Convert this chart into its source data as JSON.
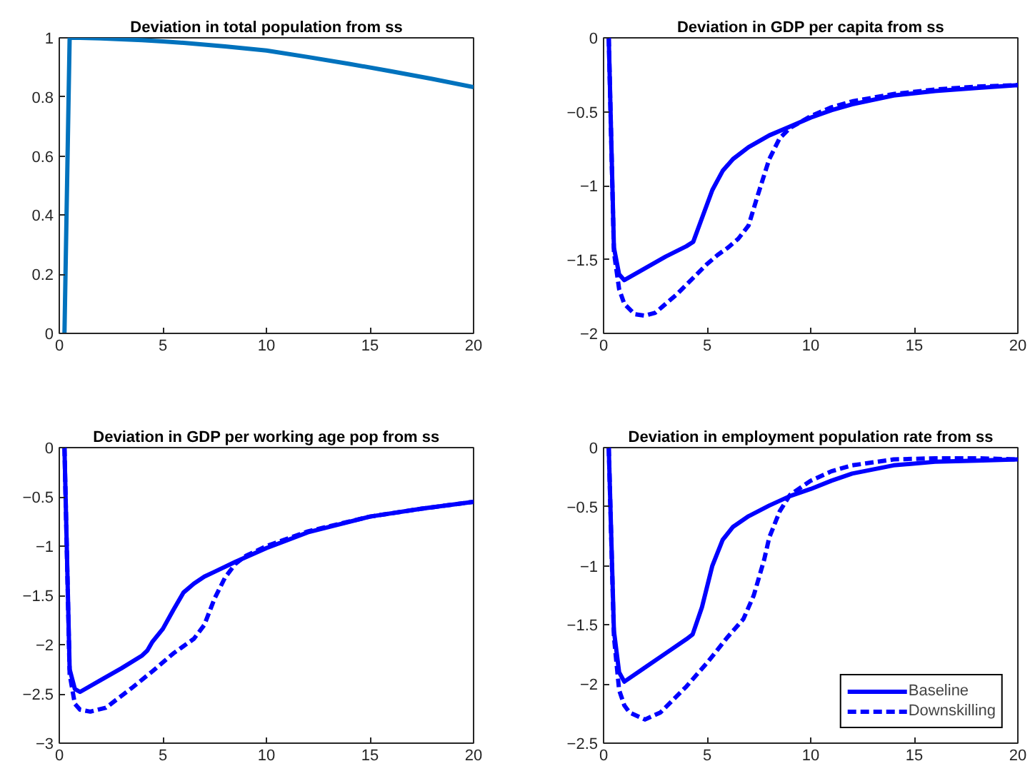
{
  "chart_data": [
    {
      "type": "line",
      "title": "Deviation in total population from ss",
      "xlim": [
        0,
        20
      ],
      "xticks": [
        0,
        5,
        10,
        15,
        20
      ],
      "ylim": [
        0,
        1
      ],
      "yticks": [
        0,
        0.2,
        0.4,
        0.6,
        0.8,
        1
      ],
      "series": [
        {
          "color": "#0072bd",
          "line_style": "solid",
          "x": [
            0.25,
            0.5,
            1,
            2,
            3,
            4,
            5,
            6,
            8,
            10,
            12,
            14,
            16,
            18,
            20
          ],
          "values": [
            0,
            1,
            1,
            0.998,
            0.995,
            0.992,
            0.988,
            0.983,
            0.971,
            0.957,
            0.935,
            0.912,
            0.887,
            0.861,
            0.833
          ]
        }
      ]
    },
    {
      "type": "line",
      "title": "Deviation in GDP per capita from ss",
      "xlim": [
        0,
        20
      ],
      "xticks": [
        0,
        5,
        10,
        15,
        20
      ],
      "ylim": [
        -2,
        0
      ],
      "yticks": [
        -2,
        -1.5,
        -1,
        -0.5,
        0
      ],
      "series": [
        {
          "color": "#0000ff",
          "line_style": "solid",
          "x": [
            0.25,
            0.5,
            0.75,
            1,
            2,
            3,
            4,
            4.33,
            4.75,
            5.25,
            5.75,
            6.25,
            7,
            8,
            9,
            10,
            11,
            12,
            14,
            16,
            18,
            20
          ],
          "values": [
            0,
            -1.42,
            -1.6,
            -1.64,
            -1.56,
            -1.48,
            -1.41,
            -1.38,
            -1.22,
            -1.03,
            -0.9,
            -0.82,
            -0.74,
            -0.66,
            -0.6,
            -0.54,
            -0.49,
            -0.45,
            -0.39,
            -0.36,
            -0.34,
            -0.32
          ]
        },
        {
          "color": "#0000ff",
          "line_style": "dashed",
          "x": [
            0.25,
            0.5,
            0.75,
            1,
            1.5,
            2,
            2.5,
            3,
            3.5,
            4,
            4.5,
            5,
            5.5,
            6,
            6.5,
            7,
            7.5,
            8,
            8.5,
            9,
            10,
            11,
            12,
            14,
            16,
            18,
            20
          ],
          "values": [
            0,
            -1.45,
            -1.7,
            -1.8,
            -1.87,
            -1.88,
            -1.86,
            -1.8,
            -1.74,
            -1.67,
            -1.6,
            -1.53,
            -1.47,
            -1.42,
            -1.36,
            -1.27,
            -1.04,
            -0.82,
            -0.68,
            -0.61,
            -0.53,
            -0.47,
            -0.43,
            -0.38,
            -0.35,
            -0.33,
            -0.32
          ]
        }
      ]
    },
    {
      "type": "line",
      "title": "Deviation in GDP per working age pop from ss",
      "xlim": [
        0,
        20
      ],
      "xticks": [
        0,
        5,
        10,
        15,
        20
      ],
      "ylim": [
        -3,
        0
      ],
      "yticks": [
        -3,
        -2.5,
        -2,
        -1.5,
        -1,
        -0.5,
        0
      ],
      "series": [
        {
          "color": "#0000ff",
          "line_style": "solid",
          "x": [
            0.25,
            0.5,
            0.75,
            1,
            2,
            3,
            4,
            4.25,
            4.5,
            5,
            5.5,
            6,
            6.5,
            7,
            7.5,
            8.5,
            10,
            12,
            15,
            17.5,
            20
          ],
          "values": [
            0,
            -2.25,
            -2.45,
            -2.48,
            -2.36,
            -2.24,
            -2.11,
            -2.06,
            -1.97,
            -1.84,
            -1.65,
            -1.47,
            -1.38,
            -1.31,
            -1.26,
            -1.16,
            -1.02,
            -0.86,
            -0.7,
            -0.62,
            -0.55
          ]
        },
        {
          "color": "#0000ff",
          "line_style": "dashed",
          "x": [
            0.25,
            0.5,
            0.75,
            1,
            1.5,
            2.25,
            3.5,
            4.5,
            5.5,
            6.5,
            7,
            7.5,
            8,
            8.5,
            9,
            10,
            12,
            15,
            17.5,
            20
          ],
          "values": [
            0,
            -2.3,
            -2.6,
            -2.66,
            -2.68,
            -2.64,
            -2.44,
            -2.27,
            -2.09,
            -1.94,
            -1.8,
            -1.53,
            -1.32,
            -1.18,
            -1.1,
            -1.0,
            -0.85,
            -0.7,
            -0.62,
            -0.55
          ]
        }
      ]
    },
    {
      "type": "line",
      "title": "Deviation in employment population rate from ss",
      "xlim": [
        0,
        20
      ],
      "xticks": [
        0,
        5,
        10,
        15,
        20
      ],
      "ylim": [
        -2.5,
        0
      ],
      "yticks": [
        -2.5,
        -2,
        -1.5,
        -1,
        -0.5,
        0
      ],
      "legend": "bottom right",
      "series": [
        {
          "name": "Baseline",
          "color": "#0000ff",
          "line_style": "solid",
          "x": [
            0.25,
            0.5,
            0.75,
            1,
            2,
            3,
            4,
            4.3,
            4.75,
            5.25,
            5.75,
            6.25,
            7,
            8,
            9,
            10,
            11,
            12,
            14,
            16,
            18,
            20
          ],
          "values": [
            0,
            -1.55,
            -1.9,
            -1.98,
            -1.86,
            -1.74,
            -1.62,
            -1.58,
            -1.35,
            -1.0,
            -0.78,
            -0.67,
            -0.58,
            -0.49,
            -0.41,
            -0.35,
            -0.28,
            -0.22,
            -0.15,
            -0.12,
            -0.11,
            -0.1
          ]
        },
        {
          "name": "Downskilling",
          "color": "#0000ff",
          "line_style": "dashed",
          "x": [
            0.25,
            0.5,
            0.75,
            1,
            1.25,
            2,
            2.75,
            4,
            5,
            6,
            6.75,
            7.25,
            7.75,
            8,
            8.5,
            9,
            10,
            11,
            12,
            14,
            16,
            18,
            20
          ],
          "values": [
            0,
            -1.6,
            -2.05,
            -2.18,
            -2.24,
            -2.3,
            -2.24,
            -2.02,
            -1.82,
            -1.6,
            -1.45,
            -1.25,
            -0.95,
            -0.76,
            -0.54,
            -0.4,
            -0.28,
            -0.2,
            -0.15,
            -0.1,
            -0.09,
            -0.09,
            -0.1
          ]
        }
      ]
    }
  ]
}
